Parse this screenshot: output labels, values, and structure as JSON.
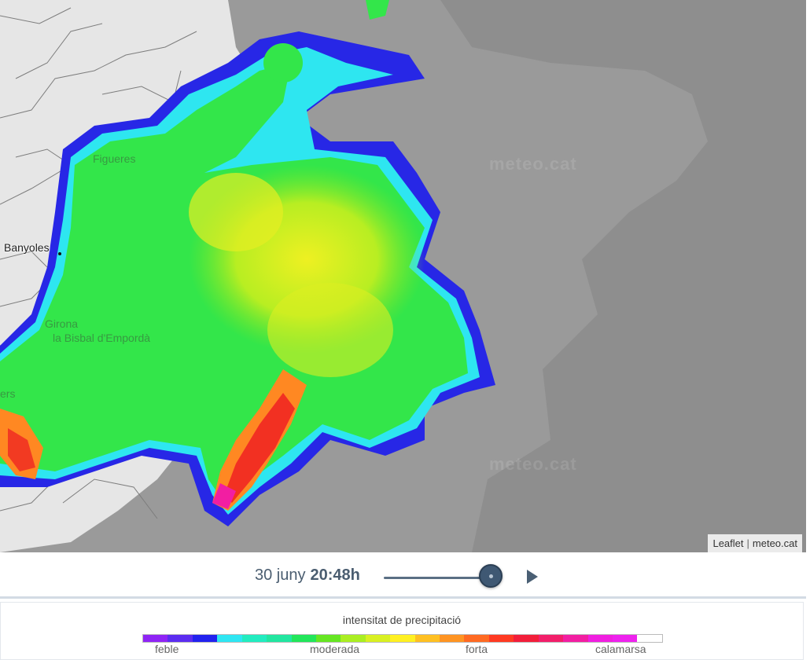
{
  "map": {
    "places": {
      "figueres": "Figueres",
      "banyoles": "Banyoles",
      "girona": "Girona",
      "la_bisbal": "la Bisbal d'Empordà",
      "partial_left": "ers"
    },
    "watermarks": [
      "meteo.cat",
      "meteo.cat"
    ],
    "attribution": {
      "leaflet": "Leaflet",
      "separator": "|",
      "source": "meteo.cat"
    }
  },
  "controls": {
    "date": "30 juny",
    "time": "20:48h",
    "slider_position_fraction": 0.9,
    "play_icon": "play-icon"
  },
  "legend": {
    "title": "intensitat de precipitació",
    "colors": [
      "#8f24f5",
      "#5b2cf0",
      "#2222ee",
      "#2ee6f2",
      "#22ecc0",
      "#22e6a0",
      "#22e65a",
      "#66e622",
      "#aaee22",
      "#d9f022",
      "#fff022",
      "#ffc022",
      "#ff9422",
      "#ff6a22",
      "#ff3a22",
      "#f21e3a",
      "#f21e6a",
      "#f21ea2",
      "#f01ee0",
      "#ee22ee",
      "#ffffff"
    ],
    "labels": {
      "feble": "feble",
      "moderada": "moderada",
      "forta": "forta",
      "calamarsa": "calamarsa"
    }
  }
}
